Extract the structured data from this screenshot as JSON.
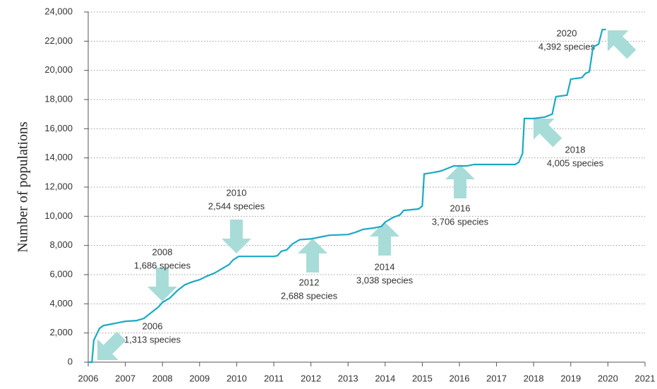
{
  "chart_data": {
    "type": "line",
    "y_label": "Number of populations",
    "color": "#1ba9c4",
    "arrow_color": "#a8dcd8",
    "grid": true,
    "xlim": [
      2006,
      2021
    ],
    "xticks": [
      2006,
      2007,
      2008,
      2009,
      2010,
      2011,
      2012,
      2013,
      2014,
      2015,
      2016,
      2017,
      2018,
      2019,
      2020,
      2021
    ],
    "ylim": [
      0,
      24000
    ],
    "yticks": [
      0,
      {
        "value": 2000,
        "label": "2,000"
      },
      {
        "value": 4000,
        "label": "4,000"
      },
      {
        "value": 6000,
        "label": "6,000"
      },
      {
        "value": 8000,
        "label": "8,000"
      },
      {
        "value": 10000,
        "label": "10,000"
      },
      {
        "value": 12000,
        "label": "12,000"
      },
      {
        "value": 14000,
        "label": "14,000"
      },
      {
        "value": 16000,
        "label": "16,000"
      },
      {
        "value": 18000,
        "label": "18,000"
      },
      {
        "value": 20000,
        "label": "20,000"
      },
      {
        "value": 22000,
        "label": "22,000"
      },
      {
        "value": 24000,
        "label": "24,000"
      }
    ],
    "x": [
      2006.0,
      2006.1,
      2006.15,
      2006.3,
      2006.4,
      2006.6,
      2006.8,
      2007.0,
      2007.3,
      2007.5,
      2007.7,
      2007.9,
      2008.0,
      2008.2,
      2008.4,
      2008.6,
      2008.8,
      2009.0,
      2009.2,
      2009.4,
      2009.6,
      2009.8,
      2009.9,
      2010.05,
      2010.5,
      2011.0,
      2011.1,
      2011.2,
      2011.35,
      2011.5,
      2011.7,
      2012.0,
      2012.3,
      2012.5,
      2013.0,
      2013.2,
      2013.4,
      2013.7,
      2013.9,
      2014.0,
      2014.2,
      2014.4,
      2014.5,
      2014.9,
      2015.0,
      2015.05,
      2015.3,
      2015.5,
      2015.7,
      2015.85,
      2016.2,
      2016.4,
      2017.0,
      2017.5,
      2017.6,
      2017.7,
      2017.75,
      2018.0,
      2018.3,
      2018.5,
      2018.6,
      2018.9,
      2019.0,
      2019.3,
      2019.4,
      2019.5,
      2019.6,
      2019.75,
      2019.85,
      2019.95
    ],
    "values": [
      0,
      0,
      1500,
      2300,
      2500,
      2600,
      2700,
      2800,
      2850,
      3000,
      3400,
      3800,
      4100,
      4400,
      4900,
      5300,
      5500,
      5650,
      5900,
      6100,
      6400,
      6700,
      7000,
      7250,
      7250,
      7250,
      7300,
      7600,
      7700,
      8100,
      8400,
      8450,
      8600,
      8700,
      8750,
      8900,
      9100,
      9200,
      9300,
      9600,
      9900,
      10100,
      10400,
      10500,
      10700,
      12900,
      13000,
      13100,
      13300,
      13450,
      13450,
      13550,
      13550,
      13550,
      13700,
      14300,
      16700,
      16700,
      16800,
      17000,
      18200,
      18300,
      19400,
      19500,
      19800,
      19900,
      21600,
      21800,
      22800,
      22800
    ],
    "annotations": [
      [
        "2006",
        "1,313 species"
      ],
      [
        "2008",
        "1,686 species"
      ],
      [
        "2010",
        "2,544 species"
      ],
      [
        "2012",
        "2,688 species"
      ],
      [
        "2014",
        "3,038 species"
      ],
      [
        "2016",
        "3,706 species"
      ],
      [
        "2018",
        "4,005 species"
      ],
      [
        "2020",
        "4,392 species"
      ]
    ]
  }
}
